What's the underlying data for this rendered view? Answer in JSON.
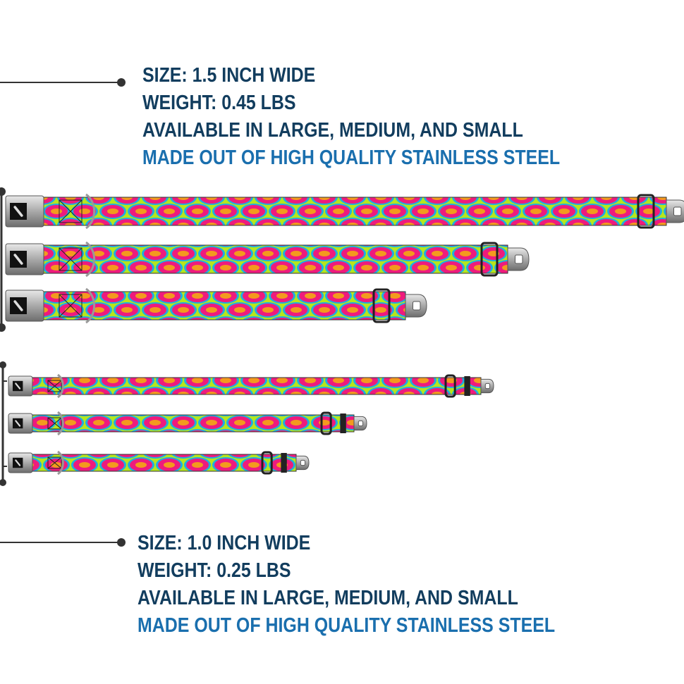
{
  "wide_collars": {
    "size": "SIZE: 1.5 INCH WIDE",
    "weight": "WEIGHT: 0.45 LBS",
    "availability": "AVAILABLE IN LARGE, MEDIUM, AND SMALL",
    "material": "MADE OUT OF HIGH QUALITY STAINLESS STEEL",
    "sizes": [
      "Large",
      "Medium",
      "Small"
    ]
  },
  "narrow_collars": {
    "size": "SIZE: 1.0 INCH WIDE",
    "weight": "WEIGHT: 0.25 LBS",
    "availability": "AVAILABLE IN LARGE, MEDIUM, AND SMALL",
    "material": "MADE OUT OF HIGH QUALITY STAINLESS STEEL",
    "sizes": [
      "Large",
      "Medium",
      "Small"
    ]
  },
  "colors": {
    "text_dark": "#123d5e",
    "text_accent": "#1a6fae",
    "pattern_pink": "#ee1b7d",
    "pattern_lime": "#b5e61d",
    "pattern_cyan": "#1eaee0",
    "pattern_orange": "#f39a1e"
  },
  "icons": [
    "bone-logo-icon",
    "seatbelt-buckle-icon",
    "d-ring-icon",
    "slide-adjuster-icon"
  ]
}
